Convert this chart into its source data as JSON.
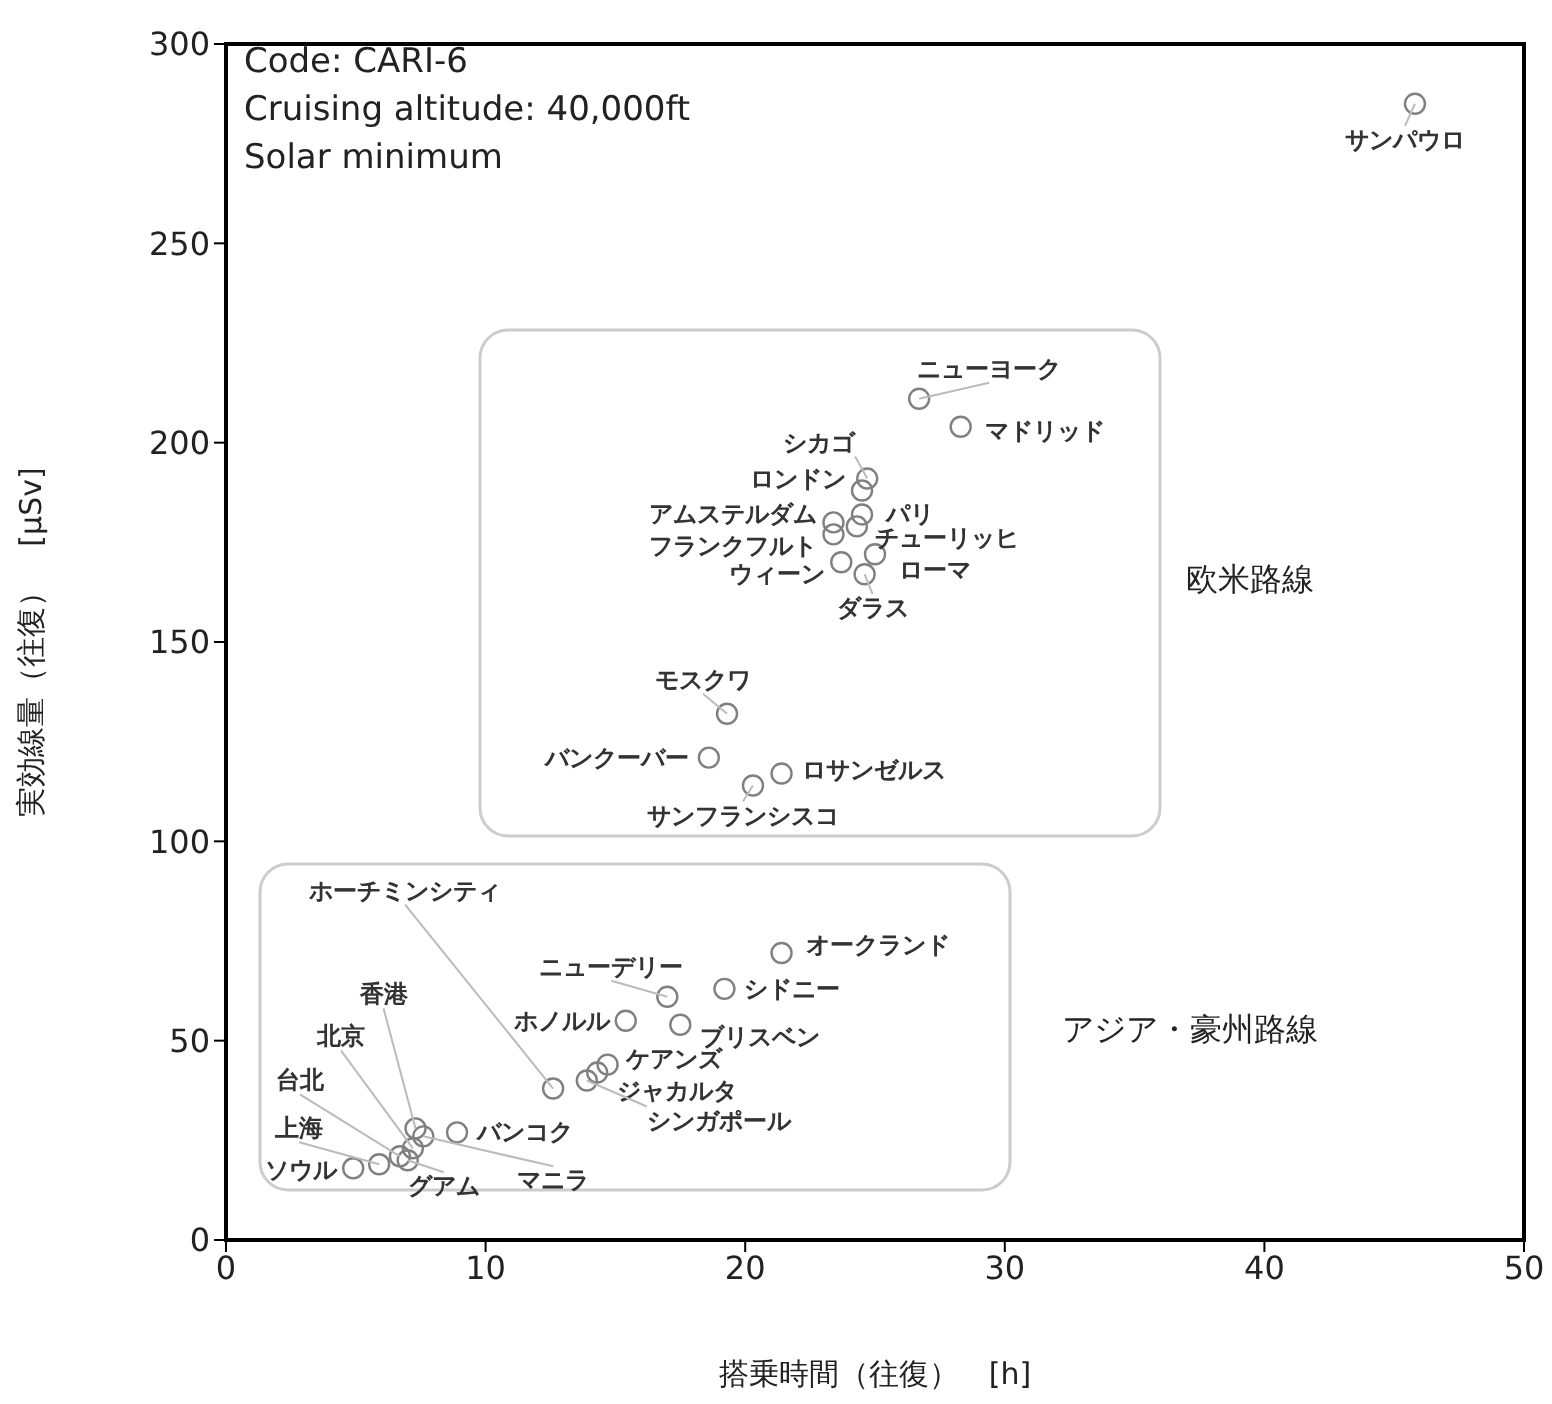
{
  "chart_data": {
    "type": "scatter",
    "xlabel": "搭乗時間（往復）　[h]",
    "ylabel": "実効線量（往復）　[μSv]",
    "xlim": [
      0,
      50
    ],
    "xticks": [
      0,
      10,
      20,
      30,
      40,
      50
    ],
    "ylim": [
      0,
      300
    ],
    "yticks": [
      0,
      50,
      100,
      150,
      200,
      250,
      300
    ],
    "marker": "circle",
    "annotations": [
      "Code: CARI-6",
      "Cruising altitude: 40,000ft",
      "Solar minimum",
      "欧米路線",
      "アジア・豪州路線"
    ],
    "series": [
      {
        "name": "サンパウロ",
        "color": "#808080",
        "x": [
          45.8
        ],
        "values": [
          285
        ]
      },
      {
        "name": "ニューヨーク",
        "color": "#808080",
        "x": [
          26.7
        ],
        "values": [
          211
        ]
      },
      {
        "name": "マドリッド",
        "color": "#808080",
        "x": [
          28.3
        ],
        "values": [
          204
        ]
      },
      {
        "name": "シカゴ",
        "color": "#808080",
        "x": [
          24.7
        ],
        "values": [
          191
        ]
      },
      {
        "name": "ロンドン",
        "color": "#808080",
        "x": [
          24.5
        ],
        "values": [
          188
        ]
      },
      {
        "name": "パリ",
        "color": "#808080",
        "x": [
          24.5
        ],
        "values": [
          182
        ]
      },
      {
        "name": "アムステルダム",
        "color": "#808080",
        "x": [
          23.4
        ],
        "values": [
          180
        ]
      },
      {
        "name": "チューリッヒ",
        "color": "#808080",
        "x": [
          24.3
        ],
        "values": [
          179
        ]
      },
      {
        "name": "フランクフルト",
        "color": "#808080",
        "x": [
          23.4
        ],
        "values": [
          177
        ]
      },
      {
        "name": "ウィーン",
        "color": "#808080",
        "x": [
          23.7
        ],
        "values": [
          170
        ]
      },
      {
        "name": "ローマ",
        "color": "#808080",
        "x": [
          25.0
        ],
        "values": [
          172
        ]
      },
      {
        "name": "ダラス",
        "color": "#808080",
        "x": [
          24.6
        ],
        "values": [
          167
        ]
      },
      {
        "name": "モスクワ",
        "color": "#808080",
        "x": [
          19.3
        ],
        "values": [
          132
        ]
      },
      {
        "name": "バンクーバー",
        "color": "#808080",
        "x": [
          18.6
        ],
        "values": [
          121
        ]
      },
      {
        "name": "ロサンゼルス",
        "color": "#808080",
        "x": [
          21.4
        ],
        "values": [
          117
        ]
      },
      {
        "name": "サンフランシスコ",
        "color": "#808080",
        "x": [
          20.3
        ],
        "values": [
          114
        ]
      },
      {
        "name": "オークランド",
        "color": "#808080",
        "x": [
          21.4
        ],
        "values": [
          72
        ]
      },
      {
        "name": "シドニー",
        "color": "#808080",
        "x": [
          19.2
        ],
        "values": [
          63
        ]
      },
      {
        "name": "ニューデリー",
        "color": "#808080",
        "x": [
          17.0
        ],
        "values": [
          61
        ]
      },
      {
        "name": "ブリスベン",
        "color": "#808080",
        "x": [
          17.5
        ],
        "values": [
          54
        ]
      },
      {
        "name": "ホノルル",
        "color": "#808080",
        "x": [
          15.4
        ],
        "values": [
          55
        ]
      },
      {
        "name": "ケアンズ",
        "color": "#808080",
        "x": [
          14.7
        ],
        "values": [
          44
        ]
      },
      {
        "name": "ジャカルタ",
        "color": "#808080",
        "x": [
          14.3
        ],
        "values": [
          42
        ]
      },
      {
        "name": "シンガポール",
        "color": "#808080",
        "x": [
          13.9
        ],
        "values": [
          40
        ]
      },
      {
        "name": "ホーチミンシティ",
        "color": "#808080",
        "x": [
          12.6
        ],
        "values": [
          38
        ]
      },
      {
        "name": "バンコク",
        "color": "#808080",
        "x": [
          8.9
        ],
        "values": [
          27
        ]
      },
      {
        "name": "マニラ",
        "color": "#808080",
        "x": [
          7.6
        ],
        "values": [
          26
        ]
      },
      {
        "name": "香港",
        "color": "#808080",
        "x": [
          7.3
        ],
        "values": [
          28
        ]
      },
      {
        "name": "北京",
        "color": "#808080",
        "x": [
          7.2
        ],
        "values": [
          23
        ]
      },
      {
        "name": "台北",
        "color": "#808080",
        "x": [
          6.7
        ],
        "values": [
          21
        ]
      },
      {
        "name": "グアム",
        "color": "#808080",
        "x": [
          7.0
        ],
        "values": [
          20
        ]
      },
      {
        "name": "上海",
        "color": "#808080",
        "x": [
          5.9
        ],
        "values": [
          19
        ]
      },
      {
        "name": "ソウル",
        "color": "#808080",
        "x": [
          4.9
        ],
        "values": [
          18
        ]
      }
    ]
  }
}
